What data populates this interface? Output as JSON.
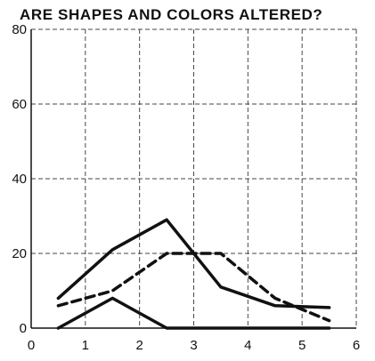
{
  "chart_data": {
    "type": "line",
    "title": "ARE SHAPES AND COLORS ALTERED?",
    "xlabel": "",
    "ylabel": "",
    "xlim": [
      0,
      6
    ],
    "ylim": [
      0,
      80
    ],
    "x_ticks": [
      "0",
      "1",
      "2",
      "3",
      "4",
      "5",
      "6"
    ],
    "y_ticks": [
      "0",
      "20",
      "40",
      "60",
      "80"
    ],
    "grid": true,
    "legend": "none",
    "colors": {
      "ink": "#111111",
      "grid": "#333333",
      "background": "#ffffff"
    },
    "series": [
      {
        "style": "solid",
        "x": [
          0.5,
          1.5,
          2.5,
          3.5,
          4.5,
          5.5
        ],
        "values": [
          8,
          21,
          29,
          11,
          6,
          5.5
        ]
      },
      {
        "style": "dashed",
        "x": [
          0.5,
          1.5,
          2.5,
          3.5,
          4.5,
          5.5
        ],
        "values": [
          6,
          10,
          20,
          20,
          8,
          2
        ]
      },
      {
        "style": "solid",
        "x": [
          0.5,
          1.5,
          2.5,
          3.5,
          4.5,
          5.5
        ],
        "values": [
          0,
          8,
          0,
          0,
          0,
          0
        ]
      }
    ]
  }
}
